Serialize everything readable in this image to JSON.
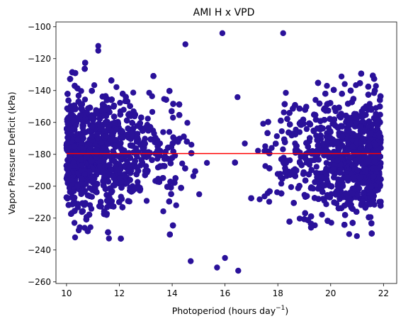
{
  "chart_data": {
    "type": "scatter",
    "title": "AMI H x VPD",
    "xlabel": "Photoperiod (hours day",
    "xlabel_sup": "−1",
    "xlabel_close": ")",
    "ylabel": "Vapor Pressure Deficit (kPa)",
    "xlim": [
      9.6,
      22.5
    ],
    "ylim": [
      -261,
      -97
    ],
    "x_ticks": [
      10,
      12,
      14,
      16,
      18,
      20,
      22
    ],
    "x_tick_labels": [
      "10",
      "12",
      "14",
      "16",
      "18",
      "20",
      "22"
    ],
    "y_ticks": [
      -100,
      -120,
      -140,
      -160,
      -180,
      -200,
      -220,
      -240,
      -260
    ],
    "y_tick_labels": [
      "−100",
      "−120",
      "−140",
      "−160",
      "−180",
      "−200",
      "−220",
      "−240",
      "−260"
    ],
    "grid": false,
    "series": [
      {
        "kind": "points",
        "color": "#2a119a",
        "x_range": [
          10.0,
          21.9
        ],
        "y_center": -180,
        "y_spread_sd": 18,
        "approx_count": 9000,
        "notable_points": [
          {
            "x": 15.9,
            "y": -104
          },
          {
            "x": 18.2,
            "y": -104
          },
          {
            "x": 11.2,
            "y": -112
          },
          {
            "x": 11.2,
            "y": -115
          },
          {
            "x": 14.5,
            "y": -111
          },
          {
            "x": 16.5,
            "y": -253
          },
          {
            "x": 15.7,
            "y": -251
          },
          {
            "x": 16.0,
            "y": -245
          },
          {
            "x": 14.7,
            "y": -247
          },
          {
            "x": 10.3,
            "y": -223
          },
          {
            "x": 20.7,
            "y": -230
          },
          {
            "x": 21.8,
            "y": -160
          },
          {
            "x": 21.9,
            "y": -176
          },
          {
            "x": 10.0,
            "y": -176
          }
        ]
      },
      {
        "kind": "line",
        "color": "#ff0000",
        "x": [
          10.0,
          21.9
        ],
        "y": [
          -179.5,
          -179.5
        ]
      }
    ]
  }
}
